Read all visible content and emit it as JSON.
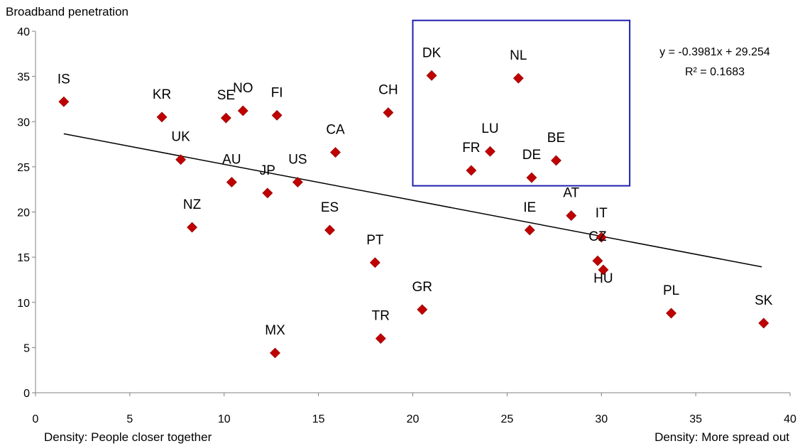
{
  "chart_data": {
    "type": "scatter",
    "ylabel": "Broadband penetration",
    "xlabel_left": "Density: People closer together",
    "xlabel_right": "Density: More spread out",
    "xlim": [
      0,
      40
    ],
    "ylim": [
      0,
      40
    ],
    "xticks": [
      0,
      5,
      10,
      15,
      20,
      25,
      30,
      35,
      40
    ],
    "yticks": [
      0,
      5,
      10,
      15,
      20,
      25,
      30,
      35,
      40
    ],
    "grid": false,
    "marker_color": "#c00000",
    "trendline": {
      "slope": -0.3981,
      "intercept": 29.254,
      "x_range": [
        1.5,
        38.5
      ],
      "equation": "y = -0.3981x + 29.254",
      "r2": "R² = 0.1683"
    },
    "highlight_box": {
      "color": "#1f1fb4",
      "x_range": [
        20,
        31.5
      ],
      "y_range": [
        22.9,
        41.2
      ]
    },
    "points": [
      {
        "label": "IS",
        "x": 1.5,
        "y": 32.2
      },
      {
        "label": "KR",
        "x": 6.7,
        "y": 30.5
      },
      {
        "label": "SE",
        "x": 10.1,
        "y": 30.4
      },
      {
        "label": "NO",
        "x": 11.0,
        "y": 31.2
      },
      {
        "label": "FI",
        "x": 12.8,
        "y": 30.7
      },
      {
        "label": "CH",
        "x": 18.7,
        "y": 31.0
      },
      {
        "label": "DK",
        "x": 21.0,
        "y": 35.1
      },
      {
        "label": "NL",
        "x": 25.6,
        "y": 34.8
      },
      {
        "label": "UK",
        "x": 7.7,
        "y": 25.8
      },
      {
        "label": "CA",
        "x": 15.9,
        "y": 26.6
      },
      {
        "label": "AU",
        "x": 10.4,
        "y": 23.3
      },
      {
        "label": "JP",
        "x": 12.3,
        "y": 22.1
      },
      {
        "label": "US",
        "x": 13.9,
        "y": 23.3
      },
      {
        "label": "LU",
        "x": 24.1,
        "y": 26.7
      },
      {
        "label": "FR",
        "x": 23.1,
        "y": 24.6
      },
      {
        "label": "BE",
        "x": 27.6,
        "y": 25.7
      },
      {
        "label": "DE",
        "x": 26.3,
        "y": 23.8
      },
      {
        "label": "NZ",
        "x": 8.3,
        "y": 18.3
      },
      {
        "label": "ES",
        "x": 15.6,
        "y": 18.0
      },
      {
        "label": "AT",
        "x": 28.4,
        "y": 19.6
      },
      {
        "label": "IE",
        "x": 26.2,
        "y": 18.0
      },
      {
        "label": "IT",
        "x": 30.0,
        "y": 17.2
      },
      {
        "label": "CZ",
        "x": 29.8,
        "y": 14.6
      },
      {
        "label": "HU",
        "x": 30.1,
        "y": 13.6
      },
      {
        "label": "PT",
        "x": 18.0,
        "y": 14.4
      },
      {
        "label": "GR",
        "x": 20.5,
        "y": 9.2
      },
      {
        "label": "PL",
        "x": 33.7,
        "y": 8.8
      },
      {
        "label": "SK",
        "x": 38.6,
        "y": 7.7
      },
      {
        "label": "TR",
        "x": 18.3,
        "y": 6.0
      },
      {
        "label": "MX",
        "x": 12.7,
        "y": 4.4
      }
    ]
  }
}
